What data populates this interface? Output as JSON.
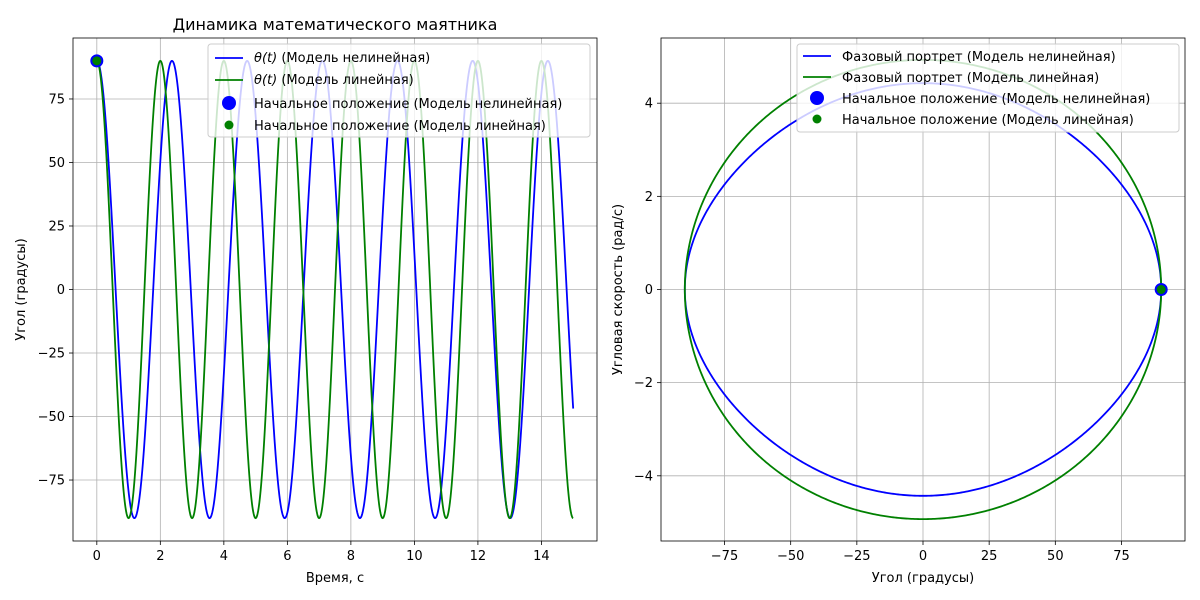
{
  "chart_data": [
    {
      "type": "line",
      "title": "Динамика математического маятника",
      "xlabel": "Время, с",
      "ylabel": "Угол (градусы)",
      "xlim": [
        -0.75,
        15.75
      ],
      "ylim": [
        -99,
        99
      ],
      "xticks": [
        0,
        2,
        4,
        6,
        8,
        10,
        12,
        14
      ],
      "yticks": [
        -75,
        -50,
        -25,
        0,
        25,
        50,
        75
      ],
      "grid": true,
      "legend_position": "top-right",
      "t_max": 15,
      "series": [
        {
          "name": "θ(t) (Модель нелинейная)",
          "name_prefix": "θ(t)",
          "name_suffix": " (Модель нелинейная)",
          "color": "#0000ff",
          "kind": "line",
          "amplitude": 90,
          "period": 2.367
        },
        {
          "name": "θ(t) (Модель линейная)",
          "name_prefix": "θ(t)",
          "name_suffix": " (Модель линейная)",
          "color": "#008000",
          "kind": "line",
          "amplitude": 90,
          "period": 2.0
        }
      ],
      "markers": [
        {
          "name": "Начальное положение (Модель нелинейная)",
          "color": "#0000ff",
          "x": 0,
          "y": 90,
          "size": "large"
        },
        {
          "name": "Начальное положение (Модель линейная)",
          "color": "#008000",
          "x": 0,
          "y": 90,
          "size": "small"
        }
      ]
    },
    {
      "type": "line",
      "title": "",
      "xlabel": "Угол (градусы)",
      "ylabel": "Угловая скорость (рад/с)",
      "xlim": [
        -99,
        99
      ],
      "ylim": [
        -5.4,
        5.4
      ],
      "xticks": [
        -75,
        -50,
        -25,
        0,
        25,
        50,
        75
      ],
      "yticks": [
        -4,
        -2,
        0,
        2,
        4
      ],
      "grid": true,
      "legend_position": "top-right",
      "series": [
        {
          "name": "Фазовый портрет (Модель нелинейная)",
          "color": "#0000ff",
          "kind": "phase",
          "angle_amplitude": 90,
          "max_velocity": 4.43,
          "nonlinear": true
        },
        {
          "name": "Фазовый портрет (Модель линейная)",
          "color": "#008000",
          "kind": "phase",
          "angle_amplitude": 90,
          "max_velocity": 4.93,
          "nonlinear": false
        }
      ],
      "markers": [
        {
          "name": "Начальное положение (Модель нелинейная)",
          "color": "#0000ff",
          "x": 90,
          "y": 0,
          "size": "large"
        },
        {
          "name": "Начальное положение (Модель линейная)",
          "color": "#008000",
          "x": 90,
          "y": 0,
          "size": "small"
        }
      ]
    }
  ]
}
